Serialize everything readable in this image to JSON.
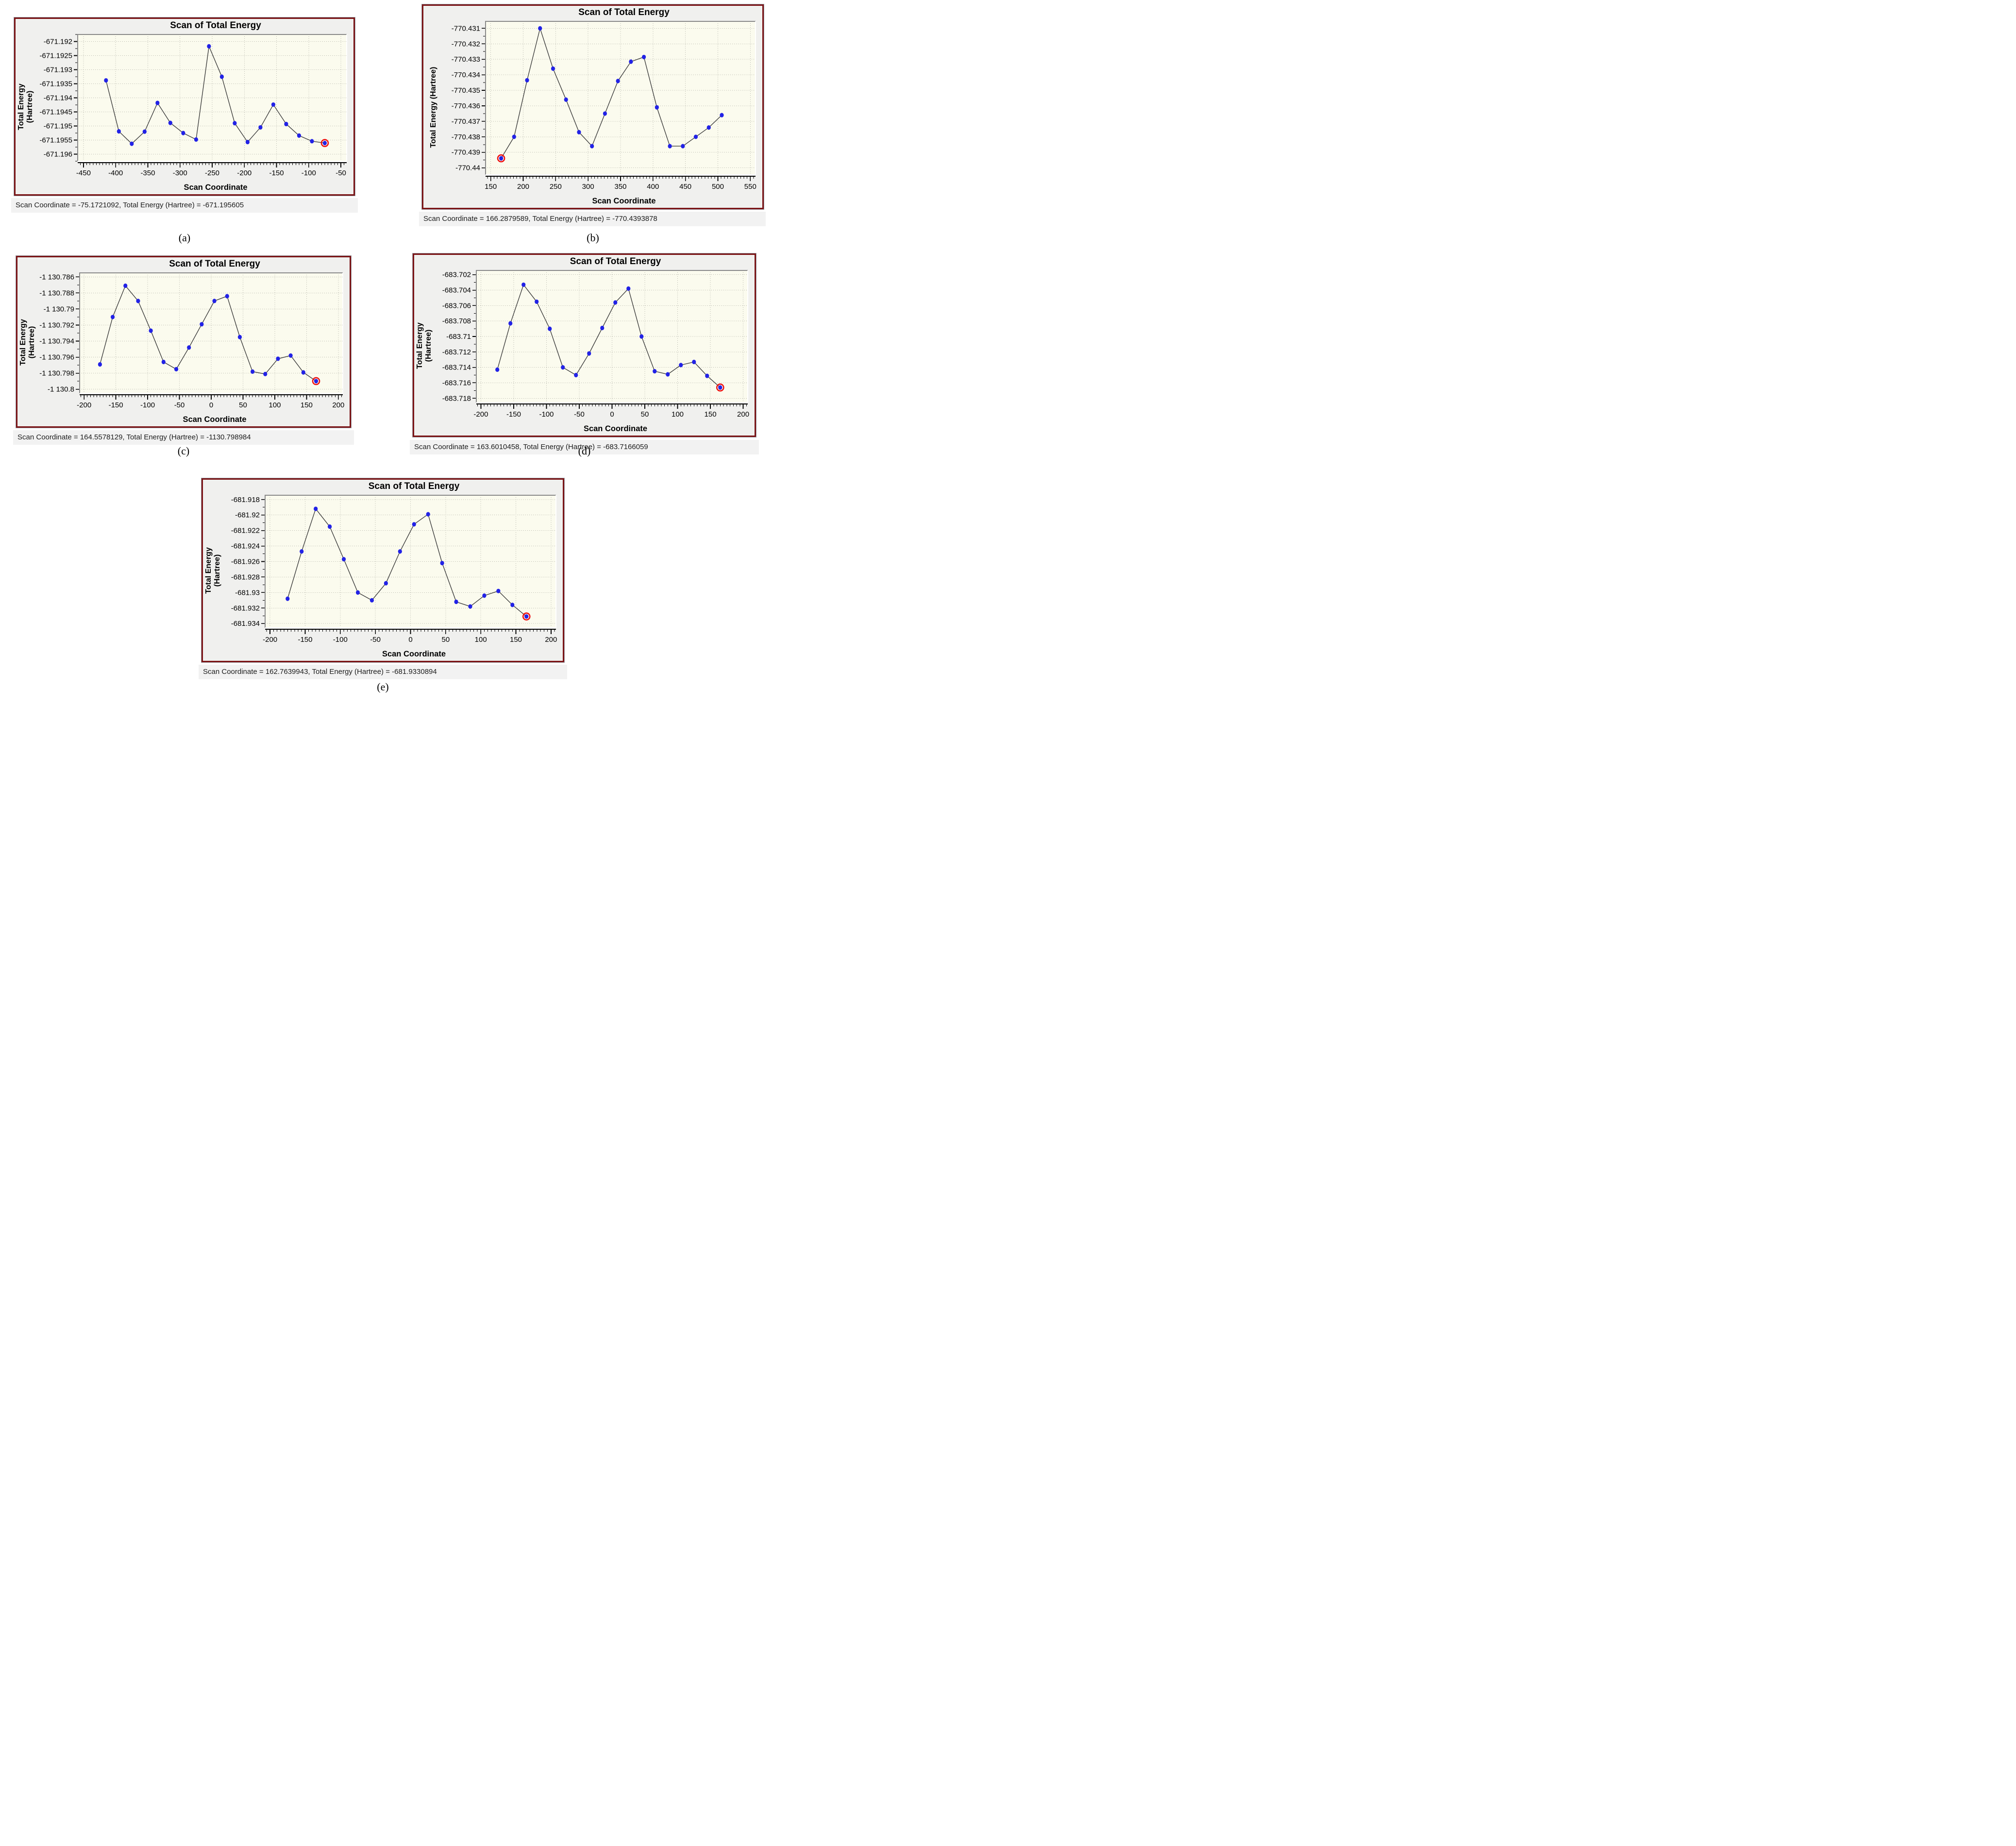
{
  "panels": [
    {
      "id": "a",
      "title": "Scan of Total Energy",
      "ylabel1": "Total Energy",
      "ylabel2": "(Hartree)",
      "xlabel": "Scan Coordinate",
      "status": "Scan Coordinate = -75.1721092, Total Energy (Hartree) = -671.195605",
      "caption": "(a)"
    },
    {
      "id": "b",
      "title": "Scan of Total Energy",
      "ylabel1": "Total Energy (Hartree)",
      "ylabel2": "",
      "xlabel": "Scan Coordinate",
      "status": "Scan Coordinate = 166.2879589, Total Energy (Hartree) = -770.4393878",
      "caption": "(b)"
    },
    {
      "id": "c",
      "title": "Scan of Total Energy",
      "ylabel1": "Total Energy",
      "ylabel2": "(Hartree)",
      "xlabel": "Scan Coordinate",
      "status": "Scan Coordinate = 164.5578129, Total Energy (Hartree) = -1130.798984",
      "caption": "(c)"
    },
    {
      "id": "d",
      "title": "Scan of Total Energy",
      "ylabel1": "Total Energy",
      "ylabel2": "(Hartree)",
      "xlabel": "Scan Coordinate",
      "status": "Scan Coordinate = 163.6010458, Total Energy (Hartree) = -683.7166059",
      "caption": "(d)"
    },
    {
      "id": "e",
      "title": "Scan of Total Energy",
      "ylabel1": "Total Energy",
      "ylabel2": "(Hartree)",
      "xlabel": "Scan Coordinate",
      "status": "Scan Coordinate = 162.7639943, Total Energy (Hartree) = -681.9330894",
      "caption": "(e)"
    }
  ],
  "chart_data": [
    {
      "type": "line",
      "title": "Scan of Total Energy",
      "xlabel": "Scan Coordinate",
      "ylabel": "Total Energy (Hartree)",
      "x": [
        -415,
        -395,
        -375,
        -355,
        -335,
        -315,
        -295,
        -275,
        -255,
        -235,
        -215,
        -195,
        -175,
        -155,
        -135,
        -115,
        -95,
        -75
      ],
      "y": [
        -671.19338,
        -671.19519,
        -671.19563,
        -671.1952,
        -671.19418,
        -671.19489,
        -671.19525,
        -671.19548,
        -671.19217,
        -671.19325,
        -671.1949,
        -671.19557,
        -671.19505,
        -671.19424,
        -671.19493,
        -671.19534,
        -671.19554,
        -671.195605
      ],
      "xlim": [
        -459,
        -41
      ],
      "ylim": [
        -671.19625,
        -671.19175
      ],
      "xtick_values": [
        -450,
        -400,
        -350,
        -300,
        -250,
        -200,
        -150,
        -100,
        -50
      ],
      "xtick_labels": [
        "-450",
        "-400",
        "-350",
        "-300",
        "-250",
        "-200",
        "-150",
        "-100",
        "-50"
      ],
      "ytick_values": [
        -671.192,
        -671.1925,
        -671.193,
        -671.1935,
        -671.194,
        -671.1945,
        -671.195,
        -671.1955,
        -671.196
      ],
      "ytick_labels": [
        "-671.192",
        "-671.1925",
        "-671.193",
        "-671.1935",
        "-671.194",
        "-671.1945",
        "-671.195",
        "-671.1955",
        "-671.196"
      ],
      "x_minor_step": 5,
      "highlight_index": 17,
      "grid": true,
      "legend": null,
      "marker_color": "#2222e6",
      "line_color": "#3c3c3c",
      "highlight_color": "#ee1010",
      "plot_bg": "#fbfbee",
      "grid_color": "#a8a89e"
    },
    {
      "type": "line",
      "title": "Scan of Total Energy",
      "xlabel": "Scan Coordinate",
      "ylabel": "Total Energy (Hartree)",
      "x": [
        166,
        186,
        206,
        226,
        246,
        266,
        286,
        306,
        326,
        346,
        366,
        386,
        406,
        426,
        446,
        466,
        486,
        506
      ],
      "y": [
        -770.4393878,
        -770.438,
        -770.43435,
        -770.431,
        -770.4336,
        -770.4356,
        -770.4377,
        -770.4386,
        -770.4365,
        -770.4344,
        -770.43315,
        -770.43285,
        -770.4361,
        -770.4386,
        -770.4386,
        -770.438,
        -770.4374,
        -770.4366
      ],
      "xlim": [
        142,
        558
      ],
      "ylim": [
        -770.44045,
        -770.43055
      ],
      "xtick_values": [
        150,
        200,
        250,
        300,
        350,
        400,
        450,
        500,
        550
      ],
      "xtick_labels": [
        "150",
        "200",
        "250",
        "300",
        "350",
        "400",
        "450",
        "500",
        "550"
      ],
      "ytick_values": [
        -770.431,
        -770.432,
        -770.433,
        -770.434,
        -770.435,
        -770.436,
        -770.437,
        -770.438,
        -770.439,
        -770.44
      ],
      "ytick_labels": [
        "-770.431",
        "-770.432",
        "-770.433",
        "-770.434",
        "-770.435",
        "-770.436",
        "-770.437",
        "-770.438",
        "-770.439",
        "-770.44"
      ],
      "x_minor_step": 5,
      "highlight_index": 0,
      "grid": true,
      "legend": null,
      "marker_color": "#2222e6",
      "line_color": "#3c3c3c",
      "highlight_color": "#ee1010",
      "plot_bg": "#fbfbee",
      "grid_color": "#a8a89e"
    },
    {
      "type": "line",
      "title": "Scan of Total Energy",
      "xlabel": "Scan Coordinate",
      "ylabel": "Total Energy (Hartree)",
      "x": [
        -175,
        -155,
        -135,
        -115,
        -95,
        -75,
        -55,
        -35,
        -15,
        5,
        25,
        45,
        65,
        85,
        105,
        125,
        145,
        165
      ],
      "y": [
        -1130.7969,
        -1130.791,
        -1130.7871,
        -1130.789,
        -1130.7927,
        -1130.7966,
        -1130.7975,
        -1130.7948,
        -1130.7919,
        -1130.789,
        -1130.7884,
        -1130.7935,
        -1130.7978,
        -1130.7981,
        -1130.7962,
        -1130.7958,
        -1130.7979,
        -1130.798984
      ],
      "xlim": [
        -207,
        207
      ],
      "ylim": [
        -1130.8005,
        -1130.7855
      ],
      "xtick_values": [
        -200,
        -150,
        -100,
        -50,
        0,
        50,
        100,
        150,
        200
      ],
      "xtick_labels": [
        "-200",
        "-150",
        "-100",
        "-50",
        "0",
        "50",
        "100",
        "150",
        "200"
      ],
      "ytick_values": [
        -1130.786,
        -1130.788,
        -1130.79,
        -1130.792,
        -1130.794,
        -1130.796,
        -1130.798,
        -1130.8
      ],
      "ytick_labels": [
        "-1 130.786",
        "-1 130.788",
        "-1 130.79",
        "-1 130.792",
        "-1 130.794",
        "-1 130.796",
        "-1 130.798",
        "-1 130.8"
      ],
      "x_minor_step": 5,
      "highlight_index": 17,
      "grid": true,
      "legend": null,
      "marker_color": "#2222e6",
      "line_color": "#3c3c3c",
      "highlight_color": "#ee1010",
      "plot_bg": "#fbfbee",
      "grid_color": "#a8a89e"
    },
    {
      "type": "line",
      "title": "Scan of Total Energy",
      "xlabel": "Scan Coordinate",
      "ylabel": "Total Energy (Hartree)",
      "x": [
        -175,
        -155,
        -135,
        -115,
        -95,
        -75,
        -55,
        -35,
        -15,
        5,
        25,
        45,
        65,
        85,
        105,
        125,
        145,
        165
      ],
      "y": [
        -683.7143,
        -683.7083,
        -683.7033,
        -683.7055,
        -683.709,
        -683.714,
        -683.715,
        -683.7122,
        -683.7089,
        -683.7056,
        -683.7038,
        -683.71,
        -683.7145,
        -683.7149,
        -683.7137,
        -683.7133,
        -683.7151,
        -683.7166059
      ],
      "xlim": [
        -207,
        207
      ],
      "ylim": [
        -683.71855,
        -683.70145
      ],
      "xtick_values": [
        -200,
        -150,
        -100,
        -50,
        0,
        50,
        100,
        150,
        200
      ],
      "xtick_labels": [
        "-200",
        "-150",
        "-100",
        "-50",
        "0",
        "50",
        "100",
        "150",
        "200"
      ],
      "ytick_values": [
        -683.702,
        -683.704,
        -683.706,
        -683.708,
        -683.71,
        -683.712,
        -683.714,
        -683.716,
        -683.718
      ],
      "ytick_labels": [
        "-683.702",
        "-683.704",
        "-683.706",
        "-683.708",
        "-683.71",
        "-683.712",
        "-683.714",
        "-683.716",
        "-683.718"
      ],
      "x_minor_step": 5,
      "highlight_index": 17,
      "grid": true,
      "legend": null,
      "marker_color": "#2222e6",
      "line_color": "#3c3c3c",
      "highlight_color": "#ee1010",
      "plot_bg": "#fbfbee",
      "grid_color": "#a8a89e"
    },
    {
      "type": "line",
      "title": "Scan of Total Energy",
      "xlabel": "Scan Coordinate",
      "ylabel": "Total Energy (Hartree)",
      "x": [
        -175,
        -155,
        -135,
        -115,
        -95,
        -75,
        -55,
        -35,
        -15,
        5,
        25,
        45,
        65,
        85,
        105,
        125,
        145,
        165
      ],
      "y": [
        -681.9308,
        -681.9247,
        -681.9192,
        -681.9215,
        -681.9257,
        -681.93,
        -681.931,
        -681.9288,
        -681.9247,
        -681.9212,
        -681.9199,
        -681.9262,
        -681.9312,
        -681.9318,
        -681.9304,
        -681.9298,
        -681.9316,
        -681.9330894
      ],
      "xlim": [
        -207,
        207
      ],
      "ylim": [
        -681.93455,
        -681.91745
      ],
      "xtick_values": [
        -200,
        -150,
        -100,
        -50,
        0,
        50,
        100,
        150,
        200
      ],
      "xtick_labels": [
        "-200",
        "-150",
        "-100",
        "-50",
        "0",
        "50",
        "100",
        "150",
        "200"
      ],
      "ytick_values": [
        -681.918,
        -681.92,
        -681.922,
        -681.924,
        -681.926,
        -681.928,
        -681.93,
        -681.932,
        -681.934
      ],
      "ytick_labels": [
        "-681.918",
        "-681.92",
        "-681.922",
        "-681.924",
        "-681.926",
        "-681.928",
        "-681.93",
        "-681.932",
        "-681.934"
      ],
      "x_minor_step": 5,
      "highlight_index": 17,
      "grid": true,
      "legend": null,
      "marker_color": "#2222e6",
      "line_color": "#3c3c3c",
      "highlight_color": "#ee1010",
      "plot_bg": "#fbfbee",
      "grid_color": "#a8a89e"
    }
  ]
}
